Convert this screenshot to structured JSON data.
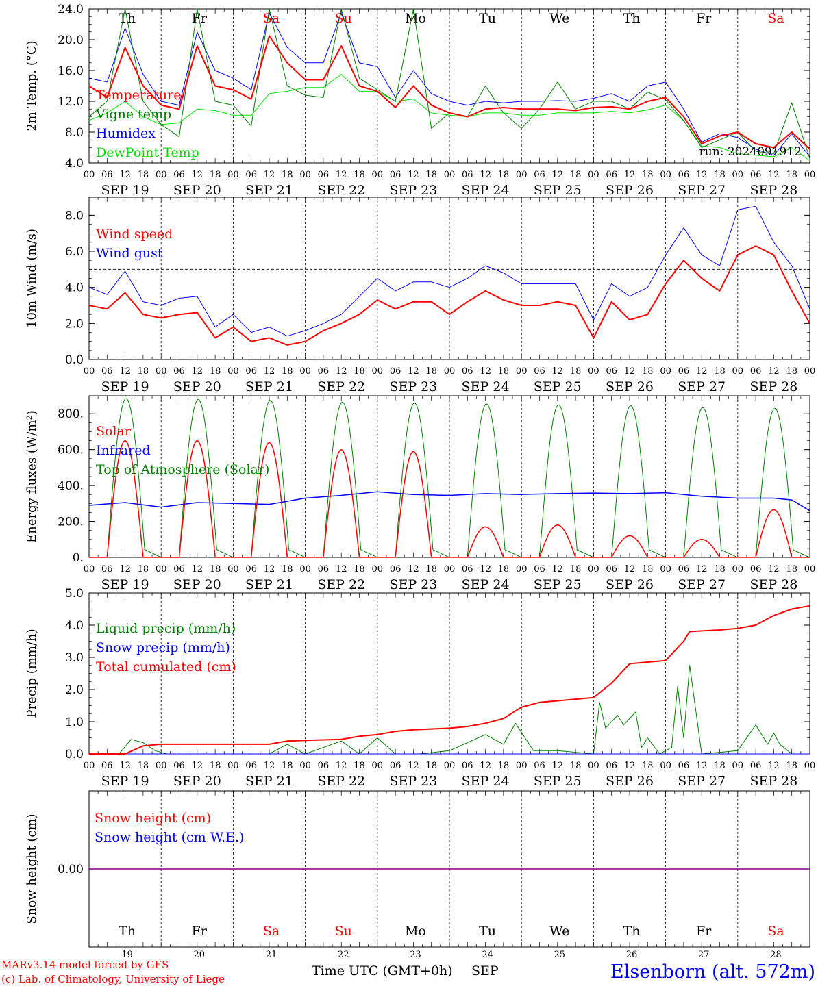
{
  "colors": {
    "red": "#ff0000",
    "green": "#008000",
    "blue": "#0000ff",
    "lime": "#00e000",
    "purple": "#7f007f",
    "black": "#000000"
  },
  "days": {
    "names": [
      "Th",
      "Fr",
      "Sa",
      "Su",
      "Mo",
      "Tu",
      "We",
      "Th",
      "Fr",
      "Sa"
    ],
    "weekend": [
      false,
      false,
      true,
      true,
      false,
      false,
      false,
      false,
      false,
      true
    ],
    "dates": [
      "SEP 19",
      "SEP 20",
      "SEP 21",
      "SEP 22",
      "SEP 23",
      "SEP 24",
      "SEP 25",
      "SEP 26",
      "SEP 27",
      "SEP 28"
    ],
    "numbers": [
      "19",
      "20",
      "21",
      "22",
      "23",
      "24",
      "25",
      "26",
      "27",
      "28"
    ],
    "hours": [
      "00",
      "06",
      "12",
      "18"
    ],
    "final_hour": "00"
  },
  "footer": {
    "model": "MARv3.14 model forced by GFS",
    "lab": "(c) Lab. of Climatology, University of Liege",
    "xlabel": "Time UTC (GMT+0h)",
    "month": "SEP",
    "station": "Elsenborn (alt. 572m)"
  },
  "chart_data": [
    {
      "type": "line",
      "ylabel": "2m Temp. (°C)",
      "ylim": [
        4,
        24
      ],
      "yticks": [
        "4.0",
        "8.0",
        "12.0",
        "16.0",
        "20.0",
        "24.0"
      ],
      "annotation": "run: 2024091912",
      "x_hours": [
        0,
        6,
        12,
        18,
        24,
        30,
        36,
        42,
        48,
        54,
        60,
        66,
        72,
        78,
        84,
        90,
        96,
        102,
        108,
        114,
        120,
        126,
        132,
        138,
        144,
        150,
        156,
        162,
        168,
        174,
        180,
        186,
        192,
        198,
        204,
        210,
        216,
        222,
        228,
        234,
        240
      ],
      "series": [
        {
          "name": "Temperature",
          "color": "#ff0000",
          "width": 2,
          "values": [
            14,
            12.5,
            19,
            14,
            11.5,
            11,
            19.2,
            14,
            13.5,
            12.3,
            20.5,
            17,
            14.8,
            14.8,
            19.2,
            14,
            13.3,
            11.2,
            14,
            11.5,
            10.5,
            10,
            11,
            11.2,
            11,
            11,
            11,
            10.8,
            11.2,
            11.3,
            11,
            12,
            12.5,
            10,
            6.5,
            7.5,
            8,
            6.5,
            6,
            8,
            5.8
          ]
        },
        {
          "name": "Vigne temp",
          "color": "#008000",
          "width": 1,
          "values": [
            10,
            12,
            24,
            12,
            9,
            7.4,
            24,
            12,
            11.5,
            8.8,
            24,
            14,
            12.8,
            12.5,
            24,
            15,
            13.5,
            12,
            24,
            8.5,
            10.5,
            10,
            14,
            10.5,
            8.5,
            11,
            14.5,
            11,
            12,
            12,
            11,
            13.2,
            12.2,
            9.5,
            6,
            7,
            8,
            5.5,
            5.2,
            11.8,
            4.6
          ]
        },
        {
          "name": "Humidex",
          "color": "#0000ff",
          "width": 1,
          "values": [
            15,
            14.5,
            21.5,
            15.5,
            12,
            11.5,
            21,
            16,
            15,
            13.5,
            23.5,
            19,
            17,
            17,
            23.5,
            17,
            16.5,
            12.5,
            16,
            13,
            12,
            11.5,
            12,
            11.8,
            12,
            12,
            12.1,
            12,
            12.4,
            13,
            12,
            14,
            14.5,
            11,
            6.7,
            7.8,
            7.3,
            5.8,
            5,
            7.8,
            4.8
          ]
        },
        {
          "name": "DewPoint Temp",
          "color": "#00e000",
          "width": 1,
          "values": [
            9.5,
            10.5,
            12,
            10,
            9,
            9.2,
            11,
            10.8,
            10.2,
            10.2,
            13,
            13.3,
            13.8,
            13.8,
            15.5,
            13.3,
            13.3,
            12,
            12.3,
            10.5,
            10.2,
            10,
            10.5,
            10.5,
            10.2,
            10.2,
            10.5,
            10.5,
            10.5,
            10.7,
            10.5,
            10.9,
            11.5,
            9.5,
            6.2,
            6,
            5.2,
            5,
            4.8,
            6,
            4.3
          ]
        }
      ]
    },
    {
      "type": "line",
      "ylabel": "10m Wind (m/s)",
      "ylim": [
        0,
        9
      ],
      "yticks": [
        "0.0",
        "2.0",
        "4.0",
        "6.0",
        "8.0"
      ],
      "refline": 5,
      "x_hours": [
        0,
        6,
        12,
        18,
        24,
        30,
        36,
        42,
        48,
        54,
        60,
        66,
        72,
        78,
        84,
        90,
        96,
        102,
        108,
        114,
        120,
        126,
        132,
        138,
        144,
        150,
        156,
        162,
        168,
        174,
        180,
        186,
        192,
        198,
        204,
        210,
        216,
        222,
        228,
        234,
        240
      ],
      "series": [
        {
          "name": "Wind speed",
          "color": "#ff0000",
          "width": 2,
          "values": [
            3,
            2.8,
            3.7,
            2.5,
            2.3,
            2.5,
            2.6,
            1.2,
            1.8,
            1,
            1.2,
            0.8,
            1,
            1.6,
            2,
            2.5,
            3.3,
            2.8,
            3.2,
            3.2,
            2.5,
            3.2,
            3.8,
            3.3,
            3,
            3,
            3.2,
            3,
            1.2,
            3.2,
            2.2,
            2.5,
            4.2,
            5.5,
            4.5,
            3.8,
            5.8,
            6.3,
            5.8,
            3.8,
            2
          ]
        },
        {
          "name": "Wind gust",
          "color": "#0000ff",
          "width": 1,
          "values": [
            4,
            3.6,
            4.9,
            3.2,
            3,
            3.4,
            3.5,
            1.8,
            2.5,
            1.5,
            1.8,
            1.3,
            1.6,
            2,
            2.5,
            3.5,
            4.5,
            3.8,
            4.3,
            4.3,
            4,
            4.5,
            5.2,
            4.8,
            4.2,
            4.2,
            4.2,
            4.2,
            2.2,
            4.2,
            3.5,
            4,
            5.8,
            7.3,
            5.8,
            5.2,
            8.3,
            8.5,
            6.5,
            5.2,
            2.8
          ]
        }
      ]
    },
    {
      "type": "line",
      "ylabel": "Energy fluxes (W/m²)",
      "ylim": [
        0,
        900
      ],
      "yticks": [
        "0.",
        "200.",
        "400.",
        "600.",
        "800."
      ],
      "series": [
        {
          "name": "Solar",
          "color": "#ff0000",
          "width": 1.5,
          "daily_peak": [
            650,
            650,
            640,
            600,
            590,
            170,
            180,
            120,
            100,
            265
          ],
          "hours": [
            6,
            18
          ]
        },
        {
          "name": "Infrared",
          "color": "#0000ff",
          "width": 1.5,
          "x_hours": [
            0,
            12,
            24,
            36,
            48,
            60,
            72,
            84,
            96,
            108,
            120,
            132,
            144,
            156,
            168,
            180,
            192,
            204,
            216,
            228,
            234,
            240
          ],
          "values": [
            290,
            305,
            280,
            305,
            300,
            295,
            330,
            345,
            365,
            350,
            345,
            355,
            350,
            355,
            358,
            355,
            360,
            340,
            330,
            330,
            320,
            260
          ]
        },
        {
          "name": "Top of Atmosphere (Solar)",
          "color": "#008000",
          "width": 1,
          "daily_peak": [
            885,
            880,
            875,
            865,
            860,
            855,
            850,
            845,
            835,
            830
          ],
          "hours": [
            6,
            18.7
          ]
        }
      ]
    },
    {
      "type": "line",
      "ylabel": "Precip (mm/h)",
      "ylim": [
        0,
        5
      ],
      "yticks": [
        "0.0",
        "1.0",
        "2.0",
        "3.0",
        "4.0",
        "5.0"
      ],
      "series": [
        {
          "name": "Liquid precip (mm/h)",
          "color": "#008000",
          "width": 1,
          "x_hours": [
            0,
            10,
            14,
            18,
            22,
            26,
            60,
            66,
            72,
            84,
            90,
            96,
            102,
            110,
            120,
            132,
            138,
            142,
            148,
            156,
            168,
            170,
            172,
            176,
            178,
            182,
            184,
            186,
            190,
            194,
            196,
            198,
            200,
            204,
            216,
            222,
            226,
            228,
            230,
            234,
            240
          ],
          "values": [
            0,
            0,
            0.45,
            0.35,
            0.1,
            0,
            0,
            0.3,
            0,
            0.4,
            0,
            0.5,
            0,
            0,
            0.1,
            0.6,
            0.3,
            0.95,
            0.1,
            0.1,
            0,
            1.6,
            0.8,
            1.2,
            0.9,
            1.3,
            0.2,
            0.5,
            0,
            0.2,
            2.1,
            0.5,
            2.75,
            0,
            0.1,
            0.9,
            0.3,
            0.65,
            0.3,
            0,
            0
          ]
        },
        {
          "name": "Snow precip (mm/h)",
          "color": "#0000ff",
          "width": 1,
          "x_hours": [
            0,
            240
          ],
          "values": [
            0,
            0
          ]
        },
        {
          "name": "Total cumulated (cm)",
          "color": "#ff0000",
          "width": 2,
          "x_hours": [
            0,
            12,
            18,
            24,
            48,
            60,
            66,
            72,
            84,
            90,
            96,
            102,
            108,
            120,
            126,
            132,
            138,
            144,
            150,
            156,
            162,
            168,
            174,
            180,
            186,
            192,
            196,
            198,
            200,
            210,
            216,
            222,
            228,
            234,
            240
          ],
          "values": [
            0,
            0,
            0.25,
            0.3,
            0.3,
            0.3,
            0.4,
            0.42,
            0.45,
            0.55,
            0.6,
            0.7,
            0.75,
            0.8,
            0.85,
            0.95,
            1.1,
            1.45,
            1.6,
            1.65,
            1.7,
            1.75,
            2.2,
            2.8,
            2.85,
            2.9,
            3.3,
            3.5,
            3.8,
            3.85,
            3.9,
            4,
            4.3,
            4.5,
            4.6
          ]
        }
      ]
    },
    {
      "type": "line",
      "ylabel": "Snow height (cm)",
      "ylim": [
        -1,
        1
      ],
      "yticks": [
        "0.00"
      ],
      "series": [
        {
          "name": "Snow height (cm)",
          "color": "#ff0000",
          "width": 1,
          "values": [
            0
          ]
        },
        {
          "name": "Snow height (cm W.E.)",
          "color": "#0000ff",
          "width": 1,
          "values": [
            0
          ]
        }
      ]
    }
  ]
}
